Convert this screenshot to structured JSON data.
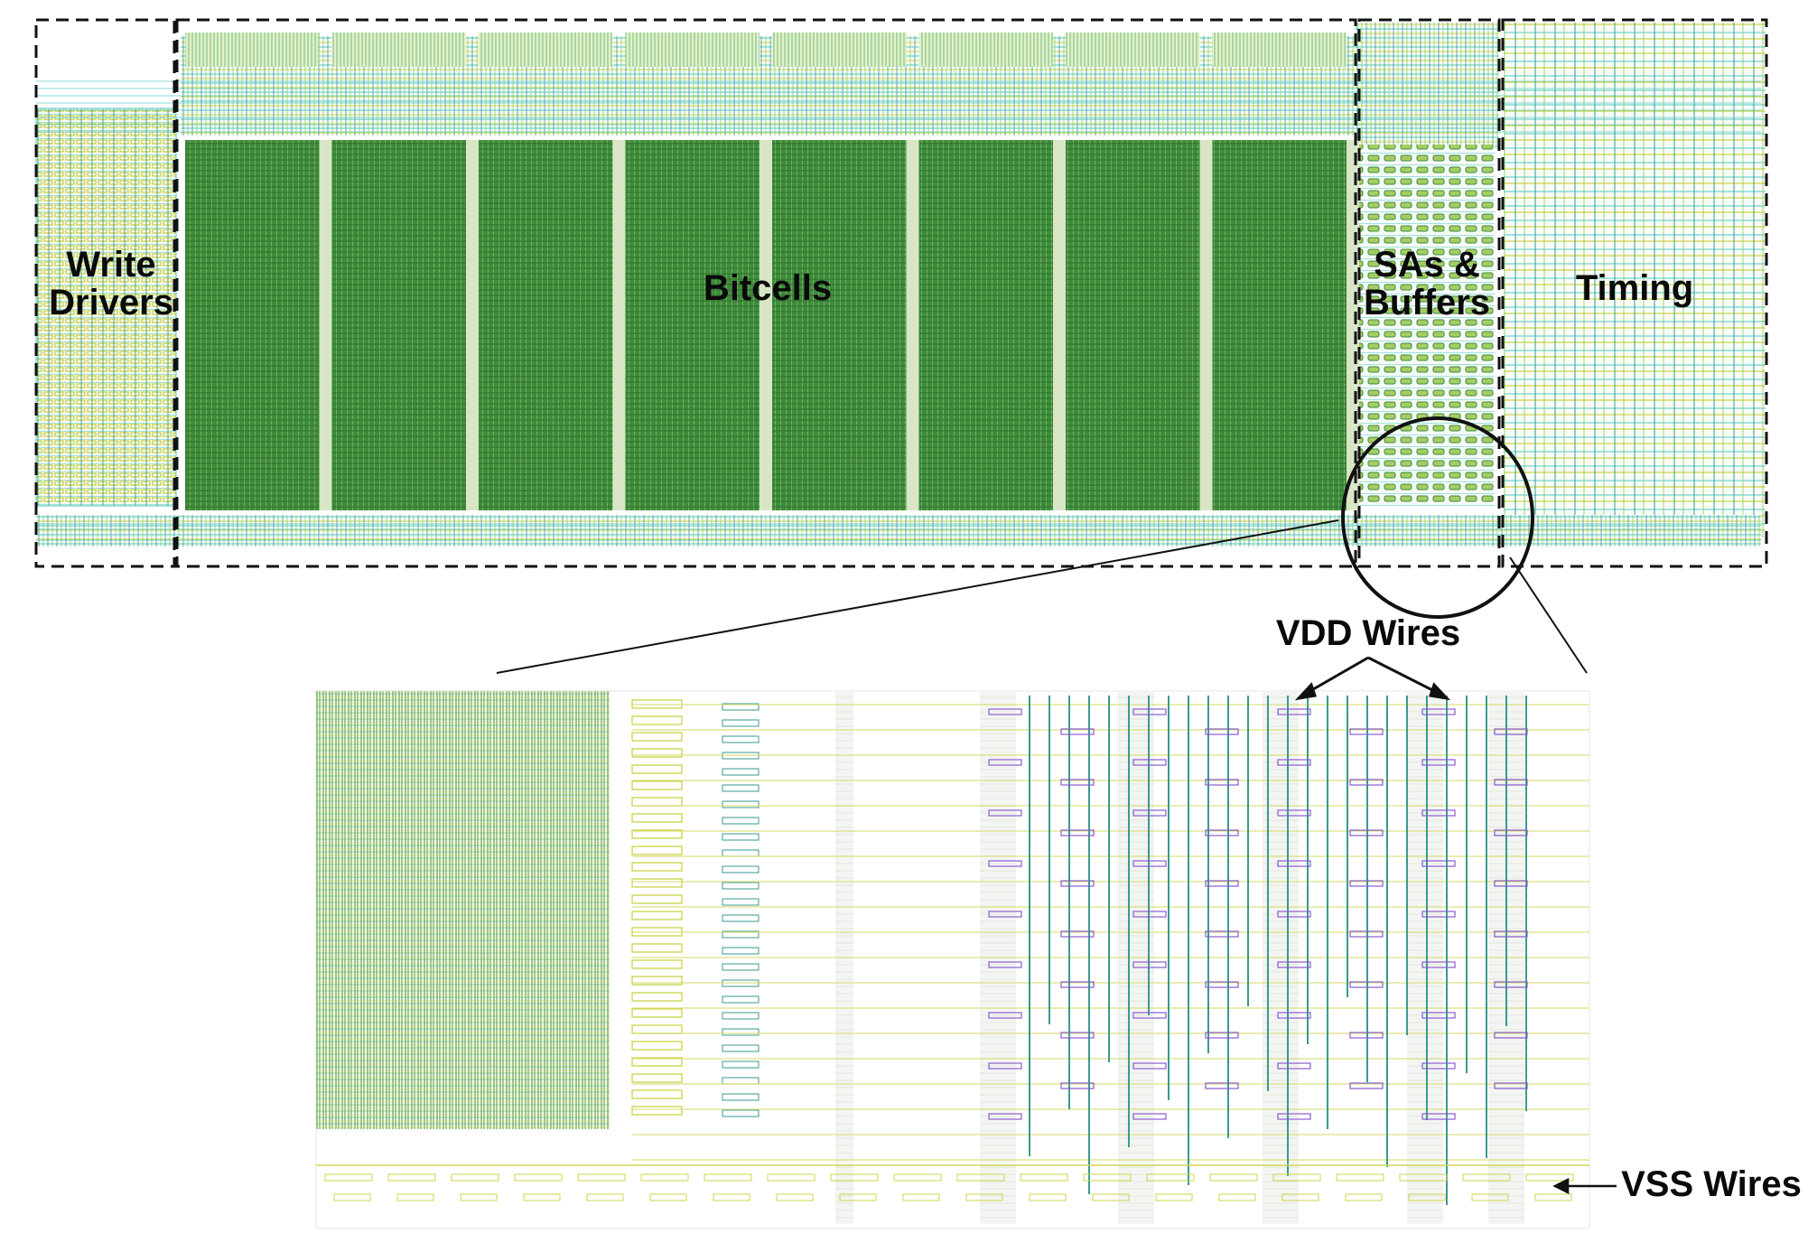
{
  "regions": {
    "write_drivers": "Write\nDrivers",
    "bitcells": "Bitcells",
    "sas_buffers": "SAs &\nBuffers",
    "timing": "Timing"
  },
  "annotations": {
    "vdd": "VDD Wires",
    "vss": "VSS Wires"
  },
  "colors": {
    "bitcell_green": "#3d8a3a",
    "metal_cyan": "#44d3d3",
    "metal_yellow": "#d6d84a",
    "metal_teal": "#3a9a90",
    "contact_purple": "#8a5ad0",
    "outline": "#111111"
  }
}
